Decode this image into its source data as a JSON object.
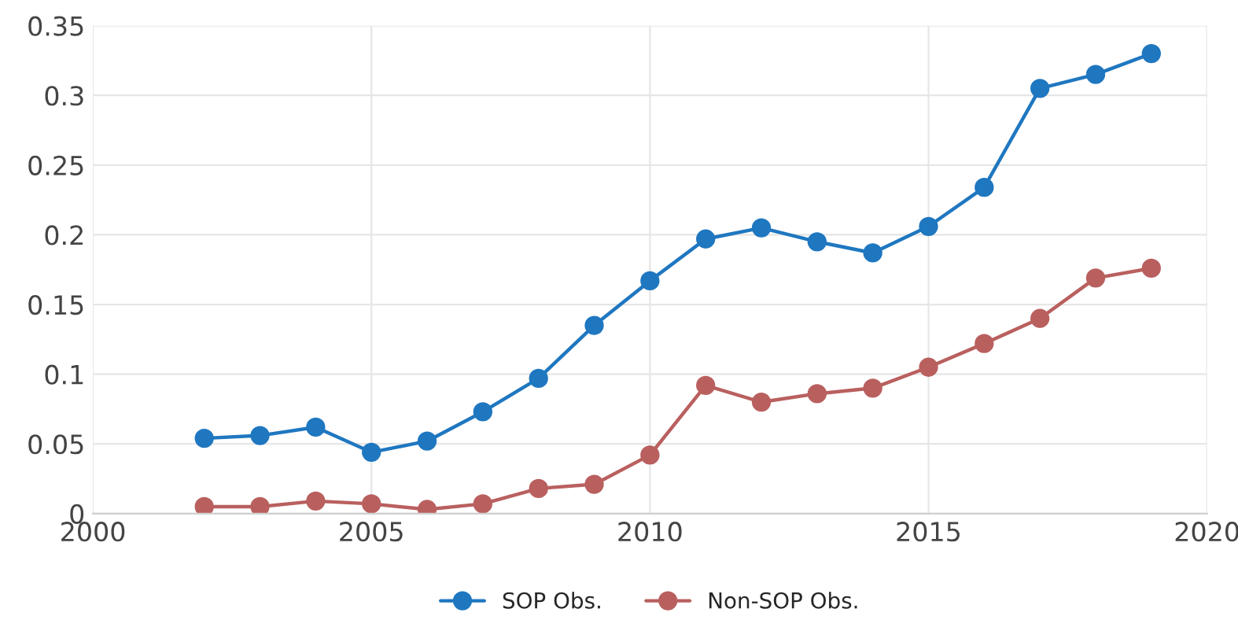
{
  "chart_data": {
    "type": "line",
    "x": [
      2002,
      2003,
      2004,
      2005,
      2006,
      2007,
      2008,
      2009,
      2010,
      2011,
      2012,
      2013,
      2014,
      2015,
      2016,
      2017,
      2018,
      2019
    ],
    "series": [
      {
        "name": "SOP Obs.",
        "color": "#1f77c0",
        "values": [
          0.054,
          0.056,
          0.062,
          0.044,
          0.052,
          0.073,
          0.097,
          0.135,
          0.167,
          0.197,
          0.205,
          0.195,
          0.187,
          0.206,
          0.234,
          0.305,
          0.315,
          0.33
        ]
      },
      {
        "name": "Non-SOP Obs.",
        "color": "#b9605f",
        "values": [
          0.005,
          0.005,
          0.009,
          0.007,
          0.003,
          0.007,
          0.018,
          0.021,
          0.042,
          0.092,
          0.08,
          0.086,
          0.09,
          0.105,
          0.122,
          0.14,
          0.169,
          0.176
        ]
      }
    ],
    "xlim": [
      2000,
      2020
    ],
    "xticks": [
      2000,
      2005,
      2010,
      2015,
      2020
    ],
    "ylim": [
      0,
      0.35
    ],
    "yticks": [
      0,
      0.05,
      0.1,
      0.15,
      0.2,
      0.25,
      0.3,
      0.35
    ],
    "grid": true,
    "legend": "bottom",
    "marker": "circle",
    "line_style": "solid"
  }
}
